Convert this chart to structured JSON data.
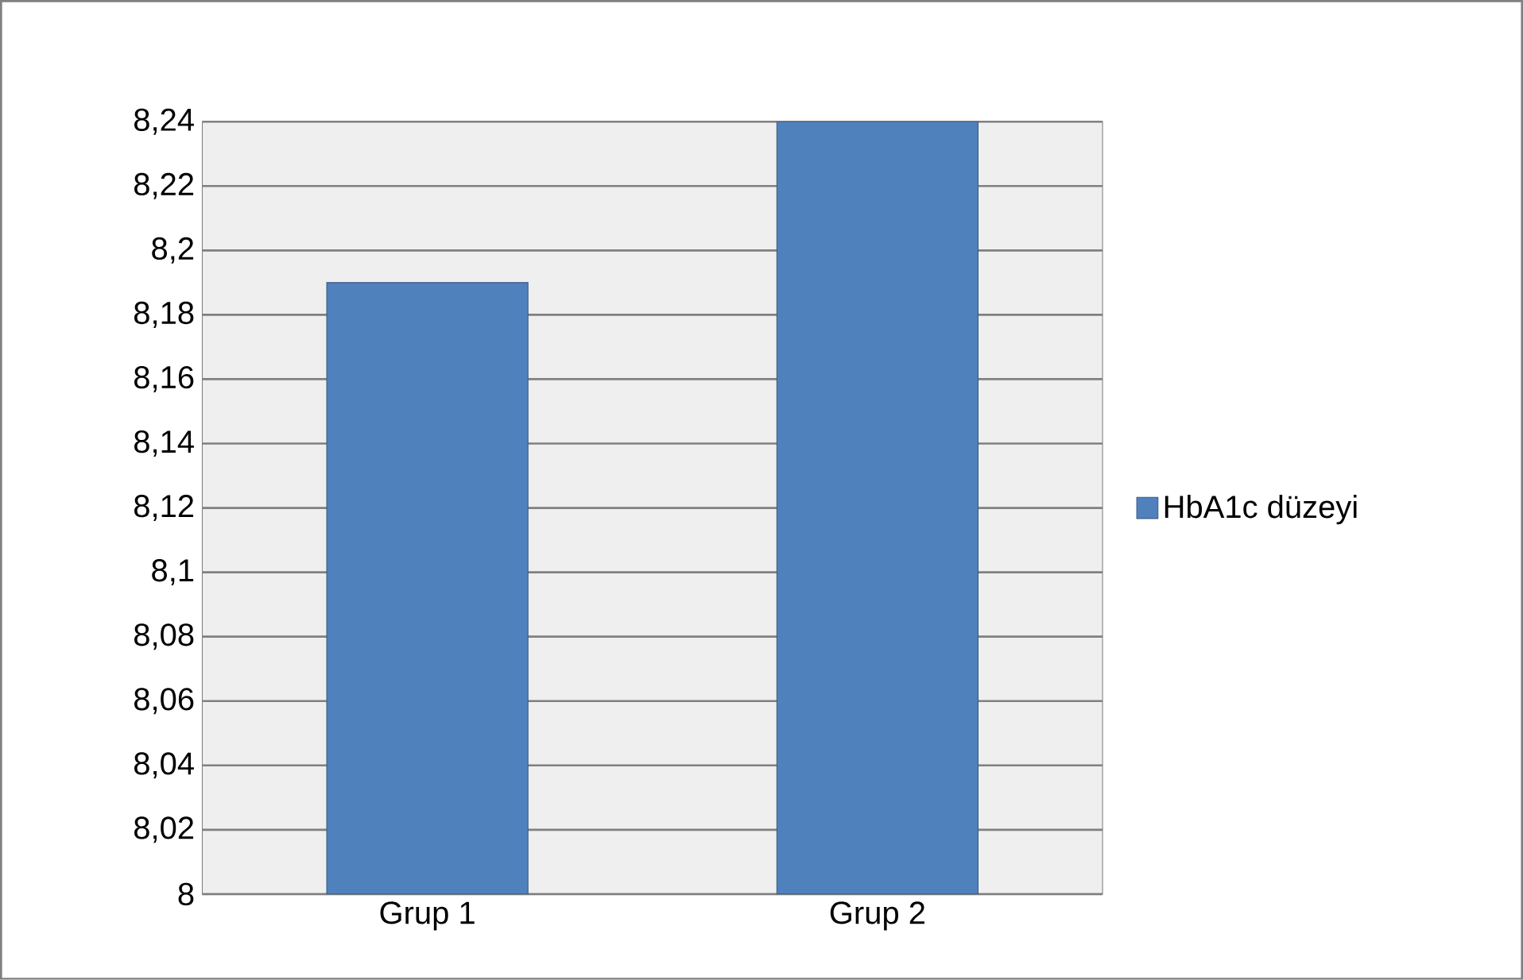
{
  "chart_data": {
    "type": "bar",
    "categories": [
      "Grup 1",
      "Grup 2"
    ],
    "series": [
      {
        "name": "HbA1c düzeyi",
        "color": "#4f81bd",
        "values": [
          8.19,
          8.24
        ]
      }
    ],
    "ylim": [
      8,
      8.24
    ],
    "yticks": [
      {
        "value": 8,
        "label": "8"
      },
      {
        "value": 8.02,
        "label": "8,02"
      },
      {
        "value": 8.04,
        "label": "8,04"
      },
      {
        "value": 8.06,
        "label": "8,06"
      },
      {
        "value": 8.08,
        "label": "8,08"
      },
      {
        "value": 8.1,
        "label": "8,1"
      },
      {
        "value": 8.12,
        "label": "8,12"
      },
      {
        "value": 8.14,
        "label": "8,14"
      },
      {
        "value": 8.16,
        "label": "8,16"
      },
      {
        "value": 8.18,
        "label": "8,18"
      },
      {
        "value": 8.2,
        "label": "8,2"
      },
      {
        "value": 8.22,
        "label": "8,22"
      },
      {
        "value": 8.24,
        "label": "8,24"
      }
    ],
    "grid": "y",
    "legend": "right"
  }
}
